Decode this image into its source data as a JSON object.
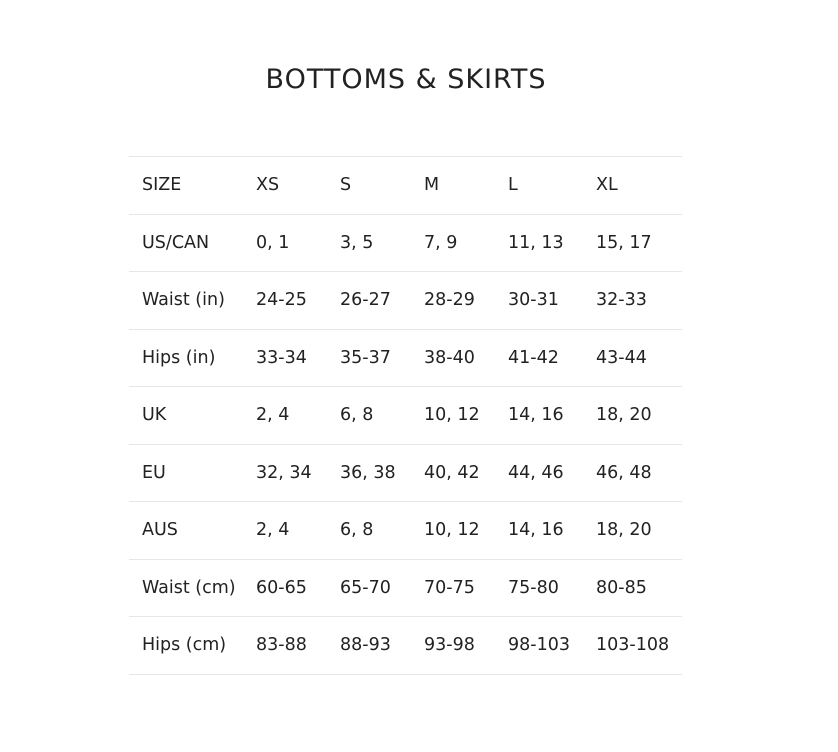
{
  "title": "BOTTOMS & SKIRTS",
  "rows": [
    [
      "SIZE",
      "XS",
      "S",
      "M",
      "L",
      "XL"
    ],
    [
      "US/CAN",
      "0, 1",
      "3, 5",
      "7, 9",
      "11, 13",
      "15, 17"
    ],
    [
      "Waist (in)",
      "24-25",
      "26-27",
      "28-29",
      "30-31",
      "32-33"
    ],
    [
      "Hips (in)",
      "33-34",
      "35-37",
      "38-40",
      "41-42",
      "43-44"
    ],
    [
      "UK",
      "2, 4",
      "6, 8",
      "10, 12",
      "14, 16",
      "18, 20"
    ],
    [
      "EU",
      "32, 34",
      "36, 38",
      "40, 42",
      "44, 46",
      "46, 48"
    ],
    [
      "AUS",
      "2, 4",
      "6, 8",
      "10, 12",
      "14, 16",
      "18, 20"
    ],
    [
      "Waist (cm)",
      "60-65",
      "65-70",
      "70-75",
      "75-80",
      "80-85"
    ],
    [
      "Hips (cm)",
      "83-88",
      "88-93",
      "93-98",
      "98-103",
      "103-108"
    ]
  ]
}
